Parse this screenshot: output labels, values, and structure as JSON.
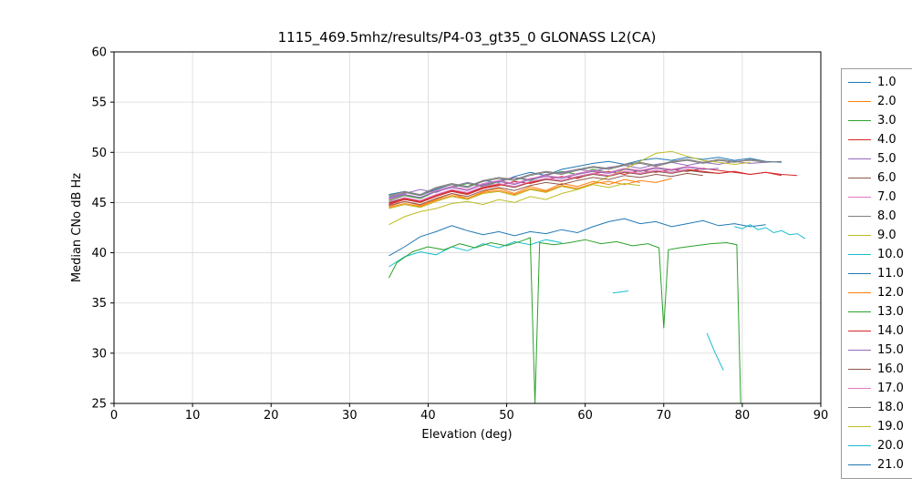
{
  "chart_data": {
    "type": "line",
    "title": "1115_469.5mhz/results/P4-03_gt35_0 GLONASS L2(CA)",
    "xlabel": "Elevation (deg)",
    "ylabel": "Median CNo dB Hz",
    "xlim": [
      0,
      90
    ],
    "ylim": [
      25,
      60
    ],
    "xticks": [
      0,
      10,
      20,
      30,
      40,
      50,
      60,
      70,
      80,
      90
    ],
    "yticks": [
      25,
      30,
      35,
      40,
      45,
      50,
      55,
      60
    ],
    "grid": true,
    "grid_color": "#d9d9d9",
    "axis_color": "#000000",
    "background": "#ffffff",
    "legend_position": "outside-right",
    "series": [
      {
        "label": "1.0",
        "color": "#1f77b4",
        "segments": [
          {
            "x0": 35,
            "dx": 2,
            "y": [
              45.8,
              46.1,
              45.7,
              46.3,
              46.8,
              46.5,
              47.2,
              47.0,
              47.6,
              48.0,
              47.7,
              48.3,
              48.6,
              48.9,
              49.1,
              48.8,
              49.2,
              49.4,
              49.2,
              49.5,
              49.3,
              49.5,
              49.2,
              49.4,
              49.1,
              49.0
            ]
          }
        ]
      },
      {
        "label": "2.0",
        "color": "#ff7f0e",
        "segments": [
          {
            "x0": 35,
            "dx": 2,
            "y": [
              44.6,
              45.1,
              44.7,
              45.3,
              45.9,
              45.4,
              46.1,
              46.4,
              45.9,
              46.6,
              46.2,
              46.9,
              46.6,
              47.1,
              46.8,
              47.3,
              47.0
            ]
          }
        ]
      },
      {
        "label": "3.0",
        "color": "#2ca02c",
        "segments": [
          {
            "x0": 35,
            "dx": 2,
            "y": [
              45.2,
              45.7,
              45.4,
              46.1,
              46.5,
              46.9,
              46.6,
              47.1,
              47.5,
              47.2,
              47.7,
              48.1,
              47.8,
              48.3,
              48.0,
              48.4,
              48.1,
              48.5,
              48.2,
              48.6
            ]
          }
        ]
      },
      {
        "label": "4.0",
        "color": "#d62728",
        "segments": [
          {
            "x0": 35,
            "dx": 2,
            "y": [
              44.8,
              45.3,
              45.0,
              45.6,
              46.1,
              45.8,
              46.4,
              46.7,
              47.1,
              46.9,
              47.3,
              47.6,
              47.4,
              47.9,
              48.1,
              47.8,
              48.2,
              48.0,
              48.3,
              48.1,
              48.4,
              48.2,
              48.0,
              47.8,
              48.0,
              47.7
            ]
          }
        ]
      },
      {
        "label": "5.0",
        "color": "#9467bd",
        "segments": [
          {
            "x0": 35,
            "dx": 2,
            "y": [
              45.5,
              45.9,
              46.3,
              46.0,
              46.6,
              47.0,
              46.7,
              47.2,
              47.5,
              47.3,
              47.8,
              48.0,
              48.3,
              48.1,
              48.5,
              48.7,
              48.4,
              48.8,
              49.0,
              48.7,
              49.0,
              48.8,
              49.1,
              48.9,
              49.0
            ]
          }
        ]
      },
      {
        "label": "6.0",
        "color": "#8c564b",
        "segments": [
          {
            "x0": 35,
            "dx": 2,
            "y": [
              45.0,
              45.4,
              45.1,
              45.7,
              46.2,
              45.9,
              46.5,
              46.8,
              46.5,
              47.0,
              47.3,
              47.1,
              47.5,
              47.8,
              47.6,
              48.0,
              47.8,
              48.1,
              47.9,
              48.2,
              48.0,
              47.9,
              48.1
            ]
          }
        ]
      },
      {
        "label": "7.0",
        "color": "#e377c2",
        "segments": [
          {
            "x0": 35,
            "dx": 2,
            "y": [
              45.3,
              45.8,
              45.5,
              46.2,
              46.6,
              46.3,
              46.9,
              47.2,
              46.9,
              47.4,
              47.7,
              47.5,
              47.9,
              48.2,
              48.0,
              48.4,
              48.2,
              48.5,
              48.3,
              48.6,
              48.4
            ]
          }
        ]
      },
      {
        "label": "8.0",
        "color": "#7f7f7f",
        "segments": [
          {
            "x0": 35,
            "dx": 2,
            "y": [
              45.6,
              46.0,
              45.7,
              46.4,
              46.8,
              46.5,
              47.1,
              47.4,
              47.2,
              47.7,
              48.0,
              47.8,
              48.2,
              48.5,
              48.3,
              48.7,
              48.9,
              48.6,
              49.0,
              49.2,
              48.9,
              49.2,
              49.0,
              49.3,
              49.1
            ]
          }
        ]
      },
      {
        "label": "9.0",
        "color": "#bcbd22",
        "segments": [
          {
            "x0": 35,
            "dx": 2,
            "y": [
              42.8,
              43.6,
              44.1,
              44.4,
              44.9,
              45.1,
              44.8,
              45.3,
              45.0,
              45.6,
              45.3,
              45.9,
              46.3,
              46.9,
              47.6,
              48.3,
              49.1,
              49.9,
              50.1,
              49.6,
              49.2,
              49.0,
              48.8,
              49.0
            ]
          }
        ]
      },
      {
        "label": "10.0",
        "color": "#17becf",
        "segments": [
          {
            "x0": 35,
            "dx": 2,
            "y": [
              38.6,
              39.6,
              40.1,
              39.8,
              40.6,
              40.2,
              40.9,
              40.5,
              41.1,
              40.8,
              41.3,
              41.0
            ]
          },
          {
            "pts": [
              [
                63.5,
                36.0
              ],
              [
                65.5,
                36.2
              ]
            ]
          }
        ]
      },
      {
        "label": "11.0",
        "color": "#1f77b4",
        "segments": [
          {
            "x0": 35,
            "dx": 2,
            "y": [
              39.7,
              40.6,
              41.6,
              42.1,
              42.7,
              42.2,
              41.8,
              42.1,
              41.7,
              42.1,
              41.9,
              42.3,
              42.0,
              42.6,
              43.1,
              43.4,
              42.9,
              43.1,
              42.6,
              42.9,
              43.2,
              42.7,
              42.9,
              42.6,
              42.8
            ]
          }
        ]
      },
      {
        "label": "12.0",
        "color": "#ff7f0e",
        "segments": [
          {
            "x0": 35,
            "dx": 2,
            "y": [
              44.5,
              44.9,
              44.6,
              45.2,
              45.7,
              45.4,
              46.0,
              46.2,
              45.8,
              46.4,
              46.1,
              46.7,
              46.4,
              46.9,
              47.1,
              46.8,
              47.2,
              47.0,
              47.4
            ]
          }
        ]
      },
      {
        "label": "13.0",
        "color": "#2ca02c",
        "segments": [
          {
            "pts": [
              [
                35,
                37.5
              ],
              [
                36,
                39.0
              ],
              [
                38,
                40.1
              ],
              [
                40,
                40.6
              ],
              [
                42,
                40.3
              ],
              [
                44,
                40.9
              ],
              [
                46,
                40.5
              ],
              [
                48,
                41.0
              ],
              [
                50,
                40.7
              ],
              [
                52,
                41.2
              ],
              [
                53,
                41.5
              ],
              [
                53.6,
                25.0
              ],
              [
                54.2,
                41.0
              ],
              [
                56,
                40.8
              ],
              [
                58,
                41.0
              ],
              [
                60,
                41.3
              ],
              [
                62,
                40.9
              ],
              [
                64,
                41.1
              ],
              [
                66,
                40.7
              ],
              [
                68,
                40.9
              ],
              [
                69.4,
                40.5
              ],
              [
                70,
                32.5
              ],
              [
                70.6,
                40.3
              ],
              [
                72,
                40.5
              ],
              [
                74,
                40.7
              ],
              [
                76,
                40.9
              ],
              [
                78,
                41.0
              ],
              [
                79.3,
                40.8
              ],
              [
                79.8,
                25.0
              ]
            ]
          }
        ]
      },
      {
        "label": "14.0",
        "color": "#d62728",
        "segments": [
          {
            "x0": 35,
            "dx": 2,
            "y": [
              44.9,
              45.4,
              45.1,
              45.7,
              46.2,
              45.9,
              46.5,
              46.8,
              46.6,
              47.0,
              47.4,
              47.2,
              47.6,
              47.9,
              47.7,
              48.1,
              47.9,
              48.2,
              48.0,
              48.3,
              48.1,
              47.9,
              48.1,
              47.8,
              48.0,
              47.8,
              47.7
            ]
          }
        ]
      },
      {
        "label": "15.0",
        "color": "#9467bd",
        "segments": [
          {
            "x0": 35,
            "dx": 2,
            "y": [
              45.4,
              45.8,
              45.5,
              46.1,
              46.5,
              46.2,
              46.8,
              47.1,
              46.8,
              47.3,
              47.6,
              47.4,
              47.8,
              48.1,
              47.9,
              48.3,
              48.1,
              48.4,
              48.2,
              48.5,
              48.3,
              48.4
            ]
          }
        ]
      },
      {
        "label": "16.0",
        "color": "#8c564b",
        "segments": [
          {
            "x0": 35,
            "dx": 2,
            "y": [
              44.7,
              45.1,
              44.8,
              45.4,
              45.9,
              45.6,
              46.2,
              46.5,
              46.2,
              46.7,
              47.0,
              46.8,
              47.2,
              47.5,
              47.3,
              47.7,
              47.5,
              47.8,
              47.6,
              47.9,
              47.7
            ]
          }
        ]
      },
      {
        "label": "17.0",
        "color": "#e377c2",
        "segments": [
          {
            "x0": 35,
            "dx": 2,
            "y": [
              45.1,
              45.5,
              45.2,
              45.8,
              46.3,
              46.0,
              46.6,
              46.9,
              46.6,
              47.1,
              47.4,
              47.2,
              47.6,
              47.9,
              47.7,
              48.1,
              47.9,
              48.2,
              48.0,
              48.3
            ]
          }
        ]
      },
      {
        "label": "18.0",
        "color": "#7f7f7f",
        "segments": [
          {
            "x0": 35,
            "dx": 2,
            "y": [
              45.7,
              46.1,
              45.8,
              46.5,
              46.9,
              46.6,
              47.2,
              47.5,
              47.3,
              47.8,
              48.1,
              47.9,
              48.3,
              48.6,
              48.4,
              48.8,
              49.0,
              48.7,
              49.1,
              49.3,
              49.0,
              49.3,
              49.1,
              49.2,
              49.0,
              49.1
            ]
          }
        ]
      },
      {
        "label": "19.0",
        "color": "#bcbd22",
        "segments": [
          {
            "x0": 35,
            "dx": 2,
            "y": [
              44.4,
              44.8,
              44.5,
              45.1,
              45.6,
              45.3,
              45.9,
              46.1,
              45.7,
              46.3,
              46.0,
              46.6,
              46.3,
              46.8,
              46.5,
              46.9,
              46.7
            ]
          }
        ]
      },
      {
        "label": "20.0",
        "color": "#17becf",
        "segments": [
          {
            "pts": [
              [
                75.5,
                32.0
              ],
              [
                76.5,
                30.1
              ],
              [
                77.6,
                28.3
              ]
            ]
          },
          {
            "x0": 79,
            "dx": 1,
            "y": [
              42.6,
              42.4,
              42.8,
              42.3,
              42.5,
              42.0,
              42.2,
              41.8,
              41.9,
              41.4
            ]
          }
        ]
      },
      {
        "label": "21.0",
        "color": "#1f77b4",
        "segments": []
      }
    ]
  }
}
